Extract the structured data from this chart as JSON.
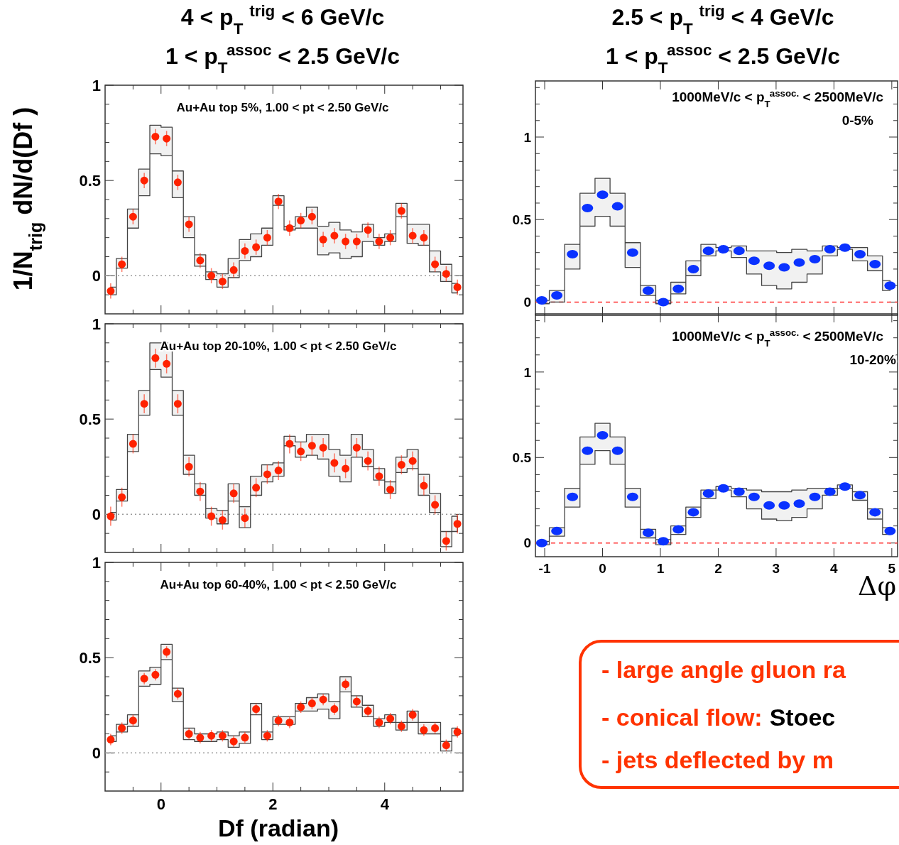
{
  "chart_data": [
    {
      "type": "scatter",
      "title": "4 < p$_{T}$ $^{trig}$ < 6 GeV/c",
      "subtitle": "1 < p$_{T}$$^{assoc}$ < 2.5 GeV/c",
      "annotations": [
        "Au+Au top 5%, 1.00 < pt < 2.50 GeV/c"
      ],
      "marker": "circle",
      "tick_labels": "y",
      "x": [
        -0.9,
        -0.7,
        -0.5,
        -0.3,
        -0.1,
        0.1,
        0.3,
        0.5,
        0.7,
        0.9,
        1.1,
        1.3,
        1.5,
        1.7,
        1.9,
        2.1,
        2.3,
        2.5,
        2.7,
        2.9,
        3.1,
        3.3,
        3.5,
        3.7,
        3.9,
        4.1,
        4.3,
        4.5,
        4.7,
        4.9,
        5.1,
        5.3
      ],
      "series": [
        {
          "color": "#ff2200",
          "values": [
            -0.08,
            0.06,
            0.31,
            0.5,
            0.73,
            0.72,
            0.49,
            0.27,
            0.08,
            0.0,
            -0.03,
            0.03,
            0.13,
            0.15,
            0.2,
            0.39,
            0.25,
            0.29,
            0.31,
            0.19,
            0.21,
            0.18,
            0.18,
            0.24,
            0.18,
            0.2,
            0.34,
            0.21,
            0.2,
            0.06,
            0.01,
            -0.06
          ],
          "errors": [
            0.04,
            0.04,
            0.04,
            0.04,
            0.04,
            0.04,
            0.04,
            0.04,
            0.04,
            0.04,
            0.04,
            0.04,
            0.04,
            0.04,
            0.04,
            0.04,
            0.04,
            0.04,
            0.04,
            0.04,
            0.04,
            0.04,
            0.04,
            0.04,
            0.04,
            0.04,
            0.04,
            0.04,
            0.04,
            0.04,
            0.04,
            0.04
          ],
          "lower": [
            -0.1,
            0.04,
            0.25,
            0.42,
            0.64,
            0.63,
            0.41,
            0.2,
            0.05,
            -0.02,
            -0.06,
            -0.01,
            0.08,
            0.1,
            0.16,
            0.37,
            0.24,
            0.25,
            0.25,
            0.11,
            0.12,
            0.09,
            0.1,
            0.18,
            0.16,
            0.18,
            0.31,
            0.17,
            0.16,
            0.02,
            -0.03,
            -0.09
          ],
          "upper": [
            -0.06,
            0.09,
            0.35,
            0.56,
            0.79,
            0.78,
            0.55,
            0.31,
            0.11,
            0.02,
            0.01,
            0.09,
            0.19,
            0.22,
            0.25,
            0.42,
            0.26,
            0.31,
            0.36,
            0.26,
            0.28,
            0.24,
            0.23,
            0.27,
            0.2,
            0.22,
            0.38,
            0.27,
            0.27,
            0.13,
            0.06,
            -0.04
          ]
        }
      ],
      "xlim": [
        -1,
        5.4
      ],
      "xticks": [
        {
          "value": -0.5,
          "label": null
        },
        0,
        {
          "value": 0.5,
          "label": null
        },
        {
          "value": 1,
          "label": null
        },
        {
          "value": 1.5,
          "label": null
        },
        2,
        {
          "value": 2.5,
          "label": null
        },
        {
          "value": 3,
          "label": null
        },
        {
          "value": 3.5,
          "label": null
        },
        4,
        {
          "value": 4.5,
          "label": null
        },
        {
          "value": 5,
          "label": null
        }
      ],
      "ylim": [
        -0.2,
        1
      ],
      "yticks": [
        {
          "value": -0.1,
          "label": null
        },
        0,
        {
          "value": 0.1,
          "label": null
        },
        {
          "value": 0.2,
          "label": null
        },
        {
          "value": 0.3,
          "label": null
        },
        {
          "value": 0.4,
          "label": null
        },
        0.5,
        {
          "value": 0.6,
          "label": null
        },
        {
          "value": 0.7,
          "label": null
        },
        {
          "value": 0.8,
          "label": null
        },
        {
          "value": 0.9,
          "label": null
        },
        1
      ],
      "ref_lines": [
        {
          "axis": "y",
          "value": 0,
          "color": "#999999",
          "line_style": "dotted"
        }
      ]
    },
    {
      "type": "scatter",
      "ylabel": "1/N$_{trig}$ dN/d(Df )",
      "annotations": [
        "Au+Au top 20-10%, 1.00 < pt < 2.50 GeV/c"
      ],
      "marker": "circle",
      "tick_labels": "y",
      "x": [
        -0.9,
        -0.7,
        -0.5,
        -0.3,
        -0.1,
        0.1,
        0.3,
        0.5,
        0.7,
        0.9,
        1.1,
        1.3,
        1.5,
        1.7,
        1.9,
        2.1,
        2.3,
        2.5,
        2.7,
        2.9,
        3.1,
        3.3,
        3.5,
        3.7,
        3.9,
        4.1,
        4.3,
        4.5,
        4.7,
        4.9,
        5.1,
        5.3
      ],
      "series": [
        {
          "color": "#ff2200",
          "values": [
            -0.01,
            0.09,
            0.37,
            0.58,
            0.82,
            0.79,
            0.58,
            0.25,
            0.12,
            -0.01,
            -0.03,
            0.11,
            -0.02,
            0.14,
            0.21,
            0.23,
            0.37,
            0.33,
            0.36,
            0.35,
            0.27,
            0.24,
            0.35,
            0.28,
            0.2,
            0.13,
            0.26,
            0.28,
            0.15,
            0.05,
            -0.14,
            -0.05
          ],
          "errors": [
            0.05,
            0.05,
            0.05,
            0.05,
            0.05,
            0.05,
            0.05,
            0.05,
            0.05,
            0.05,
            0.05,
            0.05,
            0.05,
            0.05,
            0.05,
            0.05,
            0.05,
            0.05,
            0.05,
            0.05,
            0.05,
            0.05,
            0.05,
            0.05,
            0.05,
            0.05,
            0.05,
            0.05,
            0.05,
            0.05,
            0.05,
            0.05
          ],
          "lower": [
            -0.03,
            0.07,
            0.33,
            0.52,
            0.76,
            0.72,
            0.52,
            0.21,
            0.1,
            -0.02,
            -0.05,
            0.07,
            -0.07,
            0.1,
            0.17,
            0.2,
            0.36,
            0.3,
            0.31,
            0.29,
            0.2,
            0.17,
            0.3,
            0.25,
            0.18,
            0.11,
            0.22,
            0.24,
            0.1,
            0.01,
            -0.17,
            -0.09
          ],
          "upper": [
            0.01,
            0.13,
            0.42,
            0.65,
            0.9,
            0.9,
            0.65,
            0.31,
            0.16,
            0.03,
            0.02,
            0.16,
            0.04,
            0.2,
            0.26,
            0.27,
            0.41,
            0.38,
            0.42,
            0.42,
            0.34,
            0.31,
            0.42,
            0.34,
            0.24,
            0.17,
            0.3,
            0.34,
            0.21,
            0.11,
            -0.09,
            -0.01
          ]
        }
      ],
      "xlim": [
        -1,
        5.4
      ],
      "xticks": [
        {
          "value": -0.5,
          "label": null
        },
        0,
        {
          "value": 0.5,
          "label": null
        },
        {
          "value": 1,
          "label": null
        },
        {
          "value": 1.5,
          "label": null
        },
        2,
        {
          "value": 2.5,
          "label": null
        },
        {
          "value": 3,
          "label": null
        },
        {
          "value": 3.5,
          "label": null
        },
        4,
        {
          "value": 4.5,
          "label": null
        },
        {
          "value": 5,
          "label": null
        }
      ],
      "ylim": [
        -0.2,
        1
      ],
      "yticks": [
        {
          "value": -0.1,
          "label": null
        },
        0,
        {
          "value": 0.1,
          "label": null
        },
        {
          "value": 0.2,
          "label": null
        },
        {
          "value": 0.3,
          "label": null
        },
        {
          "value": 0.4,
          "label": null
        },
        0.5,
        {
          "value": 0.6,
          "label": null
        },
        {
          "value": 0.7,
          "label": null
        },
        {
          "value": 0.8,
          "label": null
        },
        {
          "value": 0.9,
          "label": null
        },
        1
      ],
      "ref_lines": [
        {
          "axis": "y",
          "value": 0,
          "color": "#999999",
          "line_style": "dotted"
        }
      ]
    },
    {
      "type": "scatter",
      "xlabel": "Df  (radian)",
      "annotations": [
        "Au+Au top 60-40%, 1.00 < pt < 2.50 GeV/c"
      ],
      "marker": "circle",
      "x": [
        -0.9,
        -0.7,
        -0.5,
        -0.3,
        -0.1,
        0.1,
        0.3,
        0.5,
        0.7,
        0.9,
        1.1,
        1.3,
        1.5,
        1.7,
        1.9,
        2.1,
        2.3,
        2.5,
        2.7,
        2.9,
        3.1,
        3.3,
        3.5,
        3.7,
        3.9,
        4.1,
        4.3,
        4.5,
        4.7,
        4.9,
        5.1,
        5.3
      ],
      "series": [
        {
          "color": "#ff2200",
          "values": [
            0.07,
            0.13,
            0.17,
            0.39,
            0.41,
            0.53,
            0.31,
            0.1,
            0.08,
            0.09,
            0.09,
            0.06,
            0.08,
            0.23,
            0.09,
            0.17,
            0.16,
            0.24,
            0.26,
            0.28,
            0.23,
            0.36,
            0.27,
            0.22,
            0.16,
            0.18,
            0.14,
            0.2,
            0.12,
            0.13,
            0.04,
            0.11
          ],
          "errors": [
            0.03,
            0.03,
            0.03,
            0.03,
            0.03,
            0.03,
            0.03,
            0.03,
            0.03,
            0.03,
            0.03,
            0.03,
            0.03,
            0.03,
            0.03,
            0.03,
            0.03,
            0.03,
            0.03,
            0.03,
            0.03,
            0.03,
            0.03,
            0.03,
            0.03,
            0.03,
            0.03,
            0.03,
            0.03,
            0.03,
            0.03,
            0.03
          ],
          "lower": [
            0.06,
            0.11,
            0.14,
            0.35,
            0.36,
            0.49,
            0.27,
            0.07,
            0.06,
            0.06,
            0.07,
            0.03,
            0.05,
            0.2,
            0.07,
            0.15,
            0.15,
            0.22,
            0.22,
            0.23,
            0.18,
            0.32,
            0.24,
            0.19,
            0.14,
            0.16,
            0.12,
            0.16,
            0.1,
            0.1,
            0.01,
            0.09
          ],
          "upper": [
            0.09,
            0.15,
            0.2,
            0.43,
            0.45,
            0.57,
            0.34,
            0.13,
            0.1,
            0.1,
            0.11,
            0.09,
            0.11,
            0.26,
            0.11,
            0.19,
            0.19,
            0.26,
            0.29,
            0.31,
            0.27,
            0.4,
            0.3,
            0.25,
            0.18,
            0.2,
            0.16,
            0.22,
            0.16,
            0.16,
            0.06,
            0.13
          ]
        }
      ],
      "xlim": [
        -1,
        5.4
      ],
      "xticks": [
        {
          "value": -0.5,
          "label": null
        },
        0,
        {
          "value": 0.5,
          "label": null
        },
        {
          "value": 1,
          "label": null
        },
        {
          "value": 1.5,
          "label": null
        },
        2,
        {
          "value": 2.5,
          "label": null
        },
        {
          "value": 3,
          "label": null
        },
        {
          "value": 3.5,
          "label": null
        },
        4,
        {
          "value": 4.5,
          "label": null
        },
        {
          "value": 5,
          "label": null
        }
      ],
      "ylim": [
        -0.2,
        1
      ],
      "yticks": [
        {
          "value": -0.1,
          "label": null
        },
        0,
        {
          "value": 0.1,
          "label": null
        },
        {
          "value": 0.2,
          "label": null
        },
        {
          "value": 0.3,
          "label": null
        },
        {
          "value": 0.4,
          "label": null
        },
        0.5,
        {
          "value": 0.6,
          "label": null
        },
        {
          "value": 0.7,
          "label": null
        },
        {
          "value": 0.8,
          "label": null
        },
        {
          "value": 0.9,
          "label": null
        },
        1
      ],
      "ref_lines": [
        {
          "axis": "y",
          "value": 0,
          "color": "#999999",
          "line_style": "dotted"
        }
      ]
    },
    {
      "type": "scatter",
      "title": "2.5 < p$_{T}$ $^{trig}$ < 4 GeV/c",
      "subtitle": "1 < p$_{T}$$^{assoc}$ < 2.5 GeV/c",
      "annotations": [
        "1000MeV/c < p$_{T}$$^{assoc.}$ < 2500MeV/c",
        "0-5%"
      ],
      "marker": "circle",
      "tick_labels": "y",
      "x": [
        -1.05,
        -0.79,
        -0.52,
        -0.26,
        0,
        0.26,
        0.52,
        0.79,
        1.05,
        1.31,
        1.57,
        1.83,
        2.09,
        2.36,
        2.62,
        2.88,
        3.14,
        3.4,
        3.67,
        3.93,
        4.19,
        4.45,
        4.71,
        4.97
      ],
      "series": [
        {
          "color": "#0a32ff",
          "values": [
            0.01,
            0.04,
            0.29,
            0.57,
            0.65,
            0.58,
            0.3,
            0.07,
            0.0,
            0.08,
            0.2,
            0.31,
            0.32,
            0.31,
            0.25,
            0.22,
            0.21,
            0.24,
            0.26,
            0.32,
            0.33,
            0.29,
            0.23,
            0.1
          ],
          "lower": [
            -0.01,
            0.0,
            0.2,
            0.46,
            0.52,
            0.46,
            0.21,
            0.04,
            -0.01,
            0.05,
            0.16,
            0.28,
            0.31,
            0.27,
            0.17,
            0.1,
            0.08,
            0.12,
            0.17,
            0.28,
            0.32,
            0.25,
            0.19,
            0.07
          ],
          "upper": [
            0.01,
            0.07,
            0.35,
            0.66,
            0.75,
            0.66,
            0.36,
            0.1,
            0.01,
            0.12,
            0.25,
            0.35,
            0.33,
            0.34,
            0.31,
            0.31,
            0.3,
            0.32,
            0.31,
            0.34,
            0.33,
            0.33,
            0.28,
            0.13
          ]
        }
      ],
      "xlim": [
        -1.16,
        5.1
      ],
      "xticks": [
        -1,
        0,
        1,
        2,
        3,
        4,
        5
      ],
      "ylim": [
        -0.08,
        1.34
      ],
      "yticks": [
        0,
        {
          "value": 0.1,
          "label": null
        },
        {
          "value": 0.2,
          "label": null
        },
        {
          "value": 0.3,
          "label": null
        },
        {
          "value": 0.4,
          "label": null
        },
        0.5,
        {
          "value": 0.6,
          "label": null
        },
        {
          "value": 0.7,
          "label": null
        },
        {
          "value": 0.8,
          "label": null
        },
        {
          "value": 0.9,
          "label": null
        },
        1,
        {
          "value": 1.1,
          "label": null
        },
        {
          "value": 1.2,
          "label": null
        },
        {
          "value": 1.3,
          "label": null
        }
      ],
      "ref_lines": [
        {
          "axis": "y",
          "value": 0,
          "color": "#ff3333",
          "line_style": "dashed"
        }
      ]
    },
    {
      "type": "scatter",
      "xlabel": "Δφ",
      "annotations": [
        "1000MeV/c < p$_{T}$$^{assoc.}$ < 2500MeV/c",
        "10-20%"
      ],
      "marker": "circle",
      "x": [
        -1.05,
        -0.79,
        -0.52,
        -0.26,
        0,
        0.26,
        0.52,
        0.79,
        1.05,
        1.31,
        1.57,
        1.83,
        2.09,
        2.36,
        2.62,
        2.88,
        3.14,
        3.4,
        3.67,
        3.93,
        4.19,
        4.45,
        4.71,
        4.97
      ],
      "series": [
        {
          "color": "#0a32ff",
          "values": [
            0.0,
            0.07,
            0.27,
            0.54,
            0.63,
            0.54,
            0.27,
            0.06,
            0.01,
            0.08,
            0.18,
            0.29,
            0.32,
            0.3,
            0.27,
            0.22,
            0.22,
            0.23,
            0.27,
            0.3,
            0.33,
            0.28,
            0.18,
            0.07
          ],
          "lower": [
            -0.01,
            0.04,
            0.21,
            0.46,
            0.54,
            0.46,
            0.21,
            0.03,
            -0.01,
            0.05,
            0.15,
            0.26,
            0.31,
            0.27,
            0.2,
            0.14,
            0.13,
            0.15,
            0.2,
            0.28,
            0.32,
            0.25,
            0.14,
            0.05
          ],
          "upper": [
            0.01,
            0.09,
            0.32,
            0.62,
            0.7,
            0.62,
            0.32,
            0.08,
            0.02,
            0.1,
            0.21,
            0.31,
            0.33,
            0.32,
            0.31,
            0.3,
            0.3,
            0.31,
            0.32,
            0.32,
            0.34,
            0.3,
            0.2,
            0.09
          ]
        }
      ],
      "xlim": [
        -1.16,
        5.1
      ],
      "xticks": [
        -1,
        0,
        1,
        2,
        3,
        4,
        5
      ],
      "ylim": [
        -0.08,
        1.34
      ],
      "yticks": [
        0,
        {
          "value": 0.1,
          "label": null
        },
        {
          "value": 0.2,
          "label": null
        },
        {
          "value": 0.3,
          "label": null
        },
        {
          "value": 0.4,
          "label": null
        },
        0.5,
        {
          "value": 0.6,
          "label": null
        },
        {
          "value": 0.7,
          "label": null
        },
        {
          "value": 0.8,
          "label": null
        },
        {
          "value": 0.9,
          "label": null
        },
        1,
        {
          "value": 1.1,
          "label": null
        },
        {
          "value": 1.2,
          "label": null
        },
        {
          "value": 1.3,
          "label": null
        }
      ],
      "ref_lines": [
        {
          "axis": "y",
          "value": 0,
          "color": "#ff3333",
          "line_style": "dashed"
        }
      ]
    },
    {
      "type": "other",
      "annotations": [
        "- large angle gluon ra",
        "- conical flow:",
        "Stoec",
        "- jets deflected by m"
      ]
    }
  ]
}
